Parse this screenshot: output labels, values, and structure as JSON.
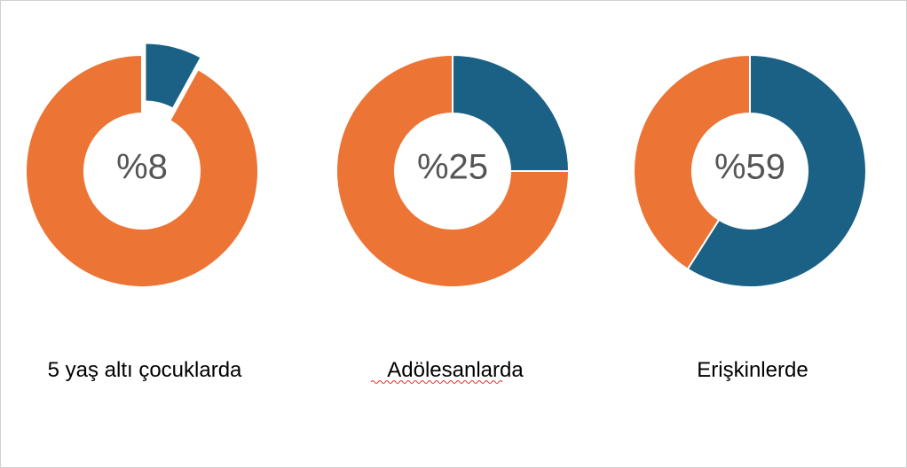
{
  "chart_data": [
    {
      "type": "donut",
      "title": "5 yaş altı çocuklarda",
      "values": [
        8,
        92
      ],
      "value_labels": [
        "%8",
        null
      ],
      "colors": [
        "#1a6185",
        "#ec7434"
      ],
      "explode": [
        true,
        false
      ]
    },
    {
      "type": "donut",
      "title": "Adölesanlarda",
      "values": [
        25,
        75
      ],
      "value_labels": [
        "%25",
        null
      ],
      "colors": [
        "#1a6185",
        "#ec7434"
      ],
      "explode": [
        false,
        false
      ]
    },
    {
      "type": "donut",
      "title": "Erişkinlerde",
      "values": [
        59,
        41
      ],
      "value_labels": [
        "%59",
        null
      ],
      "colors": [
        "#1a6185",
        "#ec7434"
      ],
      "explode": [
        false,
        false
      ]
    }
  ]
}
